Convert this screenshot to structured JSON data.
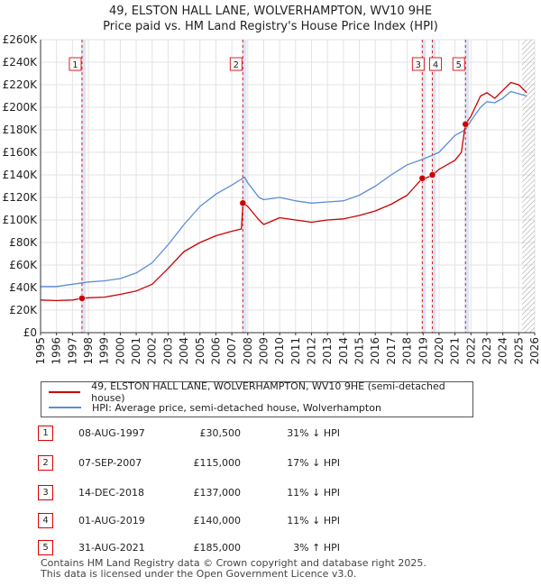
{
  "title_line1": "49, ELSTON HALL LANE, WOLVERHAMPTON, WV10 9HE",
  "title_line2": "Price paid vs. HM Land Registry's House Price Index (HPI)",
  "colors": {
    "property": "#cc0000",
    "hpi": "#5b8dd6",
    "band": "#dde6f4",
    "marker": "#cc0000"
  },
  "chart_data": {
    "type": "line",
    "title": "Price paid vs. HM Land Registry's House Price Index (HPI)",
    "xlabel": "",
    "ylabel": "",
    "xlim": [
      1995,
      2026
    ],
    "ylim": [
      0,
      260000
    ],
    "x_ticks": [
      "1995",
      "1996",
      "1997",
      "1998",
      "1999",
      "2000",
      "2001",
      "2002",
      "2003",
      "2004",
      "2005",
      "2006",
      "2007",
      "2008",
      "2009",
      "2010",
      "2011",
      "2012",
      "2013",
      "2014",
      "2015",
      "2016",
      "2017",
      "2018",
      "2019",
      "2020",
      "2021",
      "2022",
      "2023",
      "2024",
      "2025",
      "2026"
    ],
    "y_ticks": [
      {
        "v": 0,
        "label": "£0"
      },
      {
        "v": 20000,
        "label": "£20K"
      },
      {
        "v": 40000,
        "label": "£40K"
      },
      {
        "v": 60000,
        "label": "£60K"
      },
      {
        "v": 80000,
        "label": "£80K"
      },
      {
        "v": 100000,
        "label": "£100K"
      },
      {
        "v": 120000,
        "label": "£120K"
      },
      {
        "v": 140000,
        "label": "£140K"
      },
      {
        "v": 160000,
        "label": "£160K"
      },
      {
        "v": 180000,
        "label": "£180K"
      },
      {
        "v": 200000,
        "label": "£200K"
      },
      {
        "v": 220000,
        "label": "£220K"
      },
      {
        "v": 240000,
        "label": "£240K"
      },
      {
        "v": 260000,
        "label": "£260K"
      }
    ],
    "grid": true,
    "hatched_from": 2025.2,
    "series": [
      {
        "name": "49, ELSTON HALL LANE, WOLVERHAMPTON, WV10 9HE (semi-detached house)",
        "color": "#cc0000",
        "points": [
          [
            1995,
            29000
          ],
          [
            1996,
            28500
          ],
          [
            1997,
            29000
          ],
          [
            1997.6,
            30500
          ],
          [
            1998,
            31000
          ],
          [
            1999,
            31500
          ],
          [
            2000,
            34000
          ],
          [
            2001,
            37000
          ],
          [
            2002,
            43000
          ],
          [
            2003,
            57000
          ],
          [
            2004,
            72000
          ],
          [
            2005,
            80000
          ],
          [
            2006,
            86000
          ],
          [
            2007,
            90000
          ],
          [
            2007.6,
            92000
          ],
          [
            2007.7,
            115000
          ],
          [
            2008,
            112000
          ],
          [
            2008.7,
            100000
          ],
          [
            2009,
            96000
          ],
          [
            2010,
            102000
          ],
          [
            2011,
            100000
          ],
          [
            2012,
            98000
          ],
          [
            2013,
            100000
          ],
          [
            2014,
            101000
          ],
          [
            2015,
            104000
          ],
          [
            2016,
            108000
          ],
          [
            2017,
            114000
          ],
          [
            2018,
            122000
          ],
          [
            2018.95,
            137000
          ],
          [
            2019,
            136000
          ],
          [
            2019.6,
            140000
          ],
          [
            2020,
            145000
          ],
          [
            2021,
            153000
          ],
          [
            2021.4,
            160000
          ],
          [
            2021.65,
            185000
          ],
          [
            2022,
            192000
          ],
          [
            2022.6,
            210000
          ],
          [
            2023,
            213000
          ],
          [
            2023.5,
            208000
          ],
          [
            2024,
            215000
          ],
          [
            2024.5,
            222000
          ],
          [
            2025,
            220000
          ],
          [
            2025.5,
            213000
          ]
        ]
      },
      {
        "name": "HPI: Average price, semi-detached house, Wolverhampton",
        "color": "#5b8dd6",
        "points": [
          [
            1995,
            41000
          ],
          [
            1996,
            41000
          ],
          [
            1997,
            43000
          ],
          [
            1998,
            45000
          ],
          [
            1999,
            46000
          ],
          [
            2000,
            48000
          ],
          [
            2001,
            53000
          ],
          [
            2002,
            62000
          ],
          [
            2003,
            78000
          ],
          [
            2004,
            96000
          ],
          [
            2005,
            112000
          ],
          [
            2006,
            123000
          ],
          [
            2007,
            131000
          ],
          [
            2007.8,
            138000
          ],
          [
            2008,
            133000
          ],
          [
            2008.7,
            120000
          ],
          [
            2009,
            118000
          ],
          [
            2010,
            120000
          ],
          [
            2011,
            117000
          ],
          [
            2012,
            115000
          ],
          [
            2013,
            116000
          ],
          [
            2014,
            117000
          ],
          [
            2015,
            122000
          ],
          [
            2016,
            130000
          ],
          [
            2017,
            140000
          ],
          [
            2018,
            149000
          ],
          [
            2019,
            154000
          ],
          [
            2020,
            160000
          ],
          [
            2021,
            175000
          ],
          [
            2021.65,
            180000
          ],
          [
            2022,
            188000
          ],
          [
            2022.6,
            200000
          ],
          [
            2023,
            205000
          ],
          [
            2023.5,
            204000
          ],
          [
            2024,
            208000
          ],
          [
            2024.5,
            214000
          ],
          [
            2025,
            212000
          ],
          [
            2025.5,
            210000
          ]
        ]
      }
    ],
    "sales": [
      {
        "label": "1",
        "x": 1997.6,
        "price": 30500
      },
      {
        "label": "2",
        "x": 2007.69,
        "price": 115000
      },
      {
        "label": "3",
        "x": 2018.95,
        "price": 137000
      },
      {
        "label": "4",
        "x": 2019.58,
        "price": 140000
      },
      {
        "label": "5",
        "x": 2021.66,
        "price": 185000
      }
    ]
  },
  "legend": {
    "property_label": "49, ELSTON HALL LANE, WOLVERHAMPTON, WV10 9HE (semi-detached house)",
    "hpi_label": "HPI: Average price, semi-detached house, Wolverhampton"
  },
  "sales_table": [
    {
      "num": "1",
      "date": "08-AUG-1997",
      "price": "£30,500",
      "hpi": "31% ↓ HPI"
    },
    {
      "num": "2",
      "date": "07-SEP-2007",
      "price": "£115,000",
      "hpi": "17% ↓ HPI"
    },
    {
      "num": "3",
      "date": "14-DEC-2018",
      "price": "£137,000",
      "hpi": "11% ↓ HPI"
    },
    {
      "num": "4",
      "date": "01-AUG-2019",
      "price": "£140,000",
      "hpi": "11% ↓ HPI"
    },
    {
      "num": "5",
      "date": "31-AUG-2021",
      "price": "£185,000",
      "hpi": "3% ↑ HPI"
    }
  ],
  "footer_line1": "Contains HM Land Registry data © Crown copyright and database right 2025.",
  "footer_line2": "This data is licensed under the Open Government Licence v3.0."
}
